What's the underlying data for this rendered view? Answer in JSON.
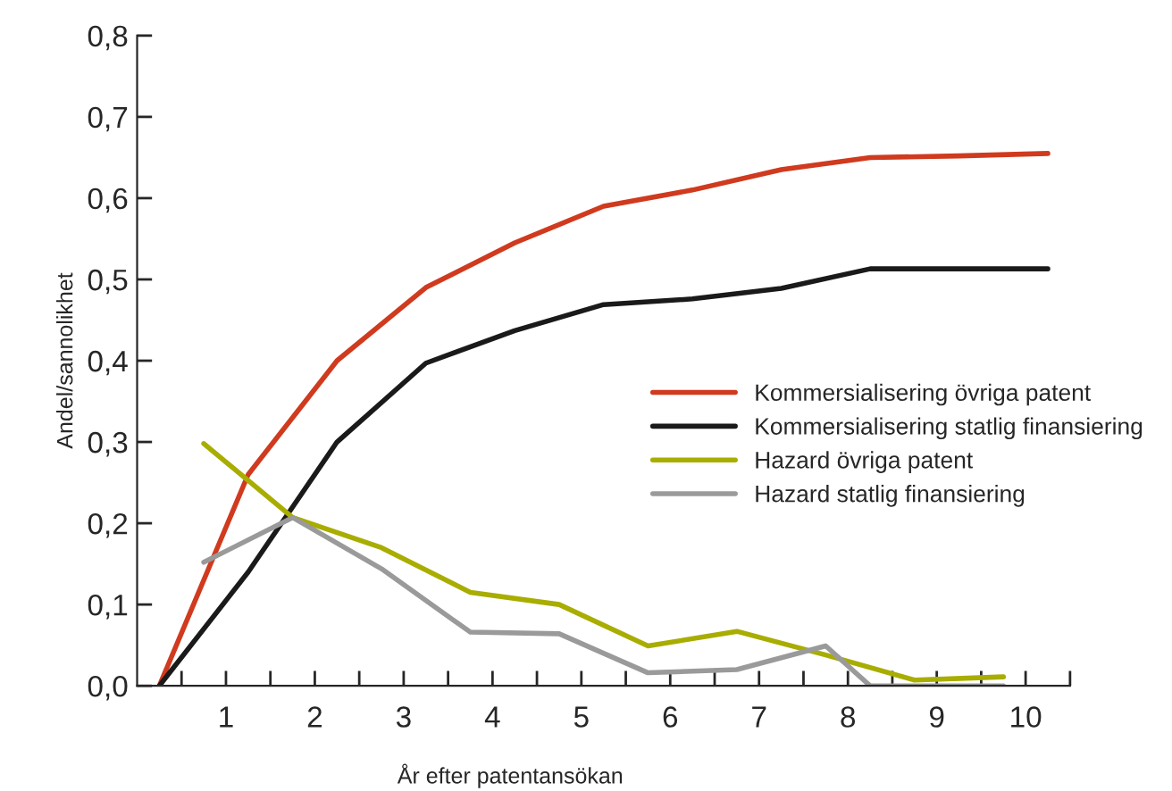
{
  "chart_data": {
    "type": "line",
    "xlabel": "År efter patentansökan",
    "ylabel": "Andel/sannolikhet",
    "x": [
      0.25,
      1.25,
      2.25,
      3.25,
      4.25,
      5.25,
      6.25,
      7.25,
      8.25,
      9.25,
      10.25
    ],
    "series": [
      {
        "name": "Kommersialisering övriga patent",
        "color": "#d03a1e",
        "values": [
          0,
          0.26,
          0.4,
          0.49,
          0.545,
          0.59,
          0.61,
          0.635,
          0.65,
          0.652,
          0.655
        ]
      },
      {
        "name": "Kommersialisering statlig finansiering",
        "color": "#1a1a1a",
        "values": [
          0,
          0.14,
          0.3,
          0.397,
          0.437,
          0.469,
          0.476,
          0.489,
          0.513,
          0.513,
          0.513
        ]
      },
      {
        "name": "Hazard övriga patent",
        "color": "#a8ad00",
        "x": [
          0.75,
          1.75,
          2.75,
          3.75,
          4.75,
          5.75,
          6.75,
          7.75,
          8.75,
          9.75
        ],
        "values": [
          0.298,
          0.207,
          0.17,
          0.115,
          0.1,
          0.049,
          0.067,
          0.038,
          0.007,
          0.011
        ]
      },
      {
        "name": "Hazard statlig finansiering",
        "color": "#9a9a9a",
        "x": [
          0.75,
          1.75,
          2.75,
          3.75,
          4.75,
          5.75,
          6.75,
          7.75,
          8.25,
          9.75
        ],
        "values": [
          0.152,
          0.207,
          0.144,
          0.066,
          0.064,
          0.016,
          0.02,
          0.049,
          0,
          0
        ]
      }
    ],
    "xlim": [
      0,
      10.5
    ],
    "xticks": [
      {
        "value": 0.5,
        "label": null
      },
      1,
      {
        "value": 1.5,
        "label": null
      },
      2,
      {
        "value": 2.5,
        "label": null
      },
      3,
      {
        "value": 3.5,
        "label": null
      },
      4,
      {
        "value": 4.5,
        "label": null
      },
      5,
      {
        "value": 5.5,
        "label": null
      },
      6,
      {
        "value": 6.5,
        "label": null
      },
      7,
      {
        "value": 7.5,
        "label": null
      },
      8,
      {
        "value": 8.5,
        "label": null
      },
      9,
      {
        "value": 9.5,
        "label": null
      },
      10,
      {
        "value": 10.5,
        "label": null
      }
    ],
    "ylim": [
      0,
      0.8
    ],
    "yticks": [
      {
        "value": 0,
        "label": "0,0"
      },
      {
        "value": 0.1,
        "label": "0,1"
      },
      {
        "value": 0.2,
        "label": "0,2"
      },
      {
        "value": 0.3,
        "label": "0,3"
      },
      {
        "value": 0.4,
        "label": "0,4"
      },
      {
        "value": 0.5,
        "label": "0,5"
      },
      {
        "value": 0.6,
        "label": "0,6"
      },
      {
        "value": 0.7,
        "label": "0,7"
      },
      {
        "value": 0.8,
        "label": "0,8"
      }
    ],
    "grid": false,
    "legend": "right",
    "marker": "none",
    "line_style": "solid"
  }
}
